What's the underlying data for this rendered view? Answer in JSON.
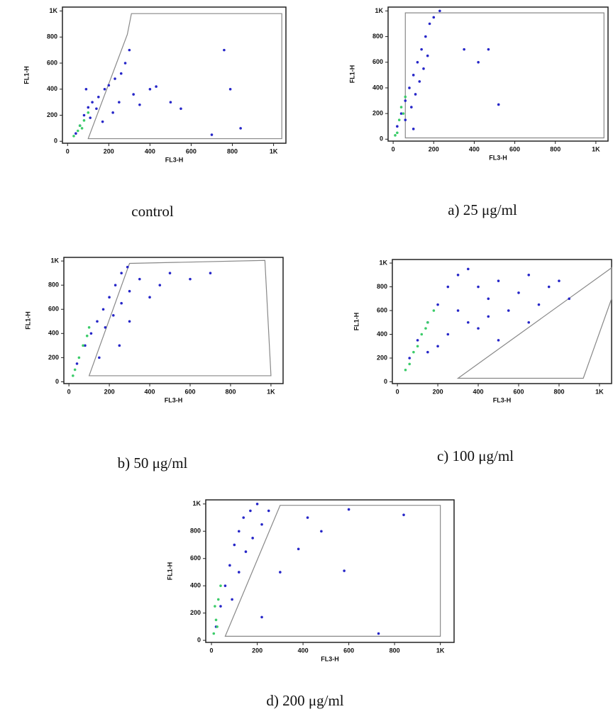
{
  "chart_data": [
    {
      "type": "scatter",
      "caption": "control",
      "xlabel": "FL3-H",
      "ylabel": "FL1-H",
      "xlim": [
        -25,
        1060
      ],
      "ylim": [
        -15,
        1030
      ],
      "xticks": [
        0,
        200,
        400,
        600,
        800,
        {
          "value": 1000,
          "label": "1K"
        }
      ],
      "yticks": [
        0,
        200,
        400,
        600,
        800,
        {
          "value": 1000,
          "label": "1K"
        }
      ],
      "gate": {
        "x": [
          100,
          1040,
          1040,
          310,
          290
        ],
        "y": [
          20,
          20,
          980,
          980,
          820
        ]
      },
      "series": [
        {
          "color": "#2626c8",
          "x": [
            40,
            60,
            80,
            100,
            120,
            150,
            180,
            200,
            230,
            260,
            280,
            300,
            220,
            250,
            320,
            350,
            400,
            430,
            500,
            550,
            700,
            760,
            790,
            840,
            140,
            110,
            90,
            170
          ],
          "values": [
            60,
            120,
            200,
            260,
            300,
            340,
            400,
            430,
            480,
            520,
            600,
            700,
            220,
            300,
            360,
            280,
            400,
            420,
            300,
            250,
            50,
            700,
            400,
            100,
            250,
            180,
            400,
            150
          ]
        },
        {
          "color": "#3ccc6a",
          "x": [
            30,
            50,
            60,
            80,
            100,
            70
          ],
          "values": [
            40,
            80,
            120,
            160,
            220,
            100
          ]
        }
      ]
    },
    {
      "type": "scatter",
      "caption": "a) 25 μg/ml",
      "xlabel": "FL3-H",
      "ylabel": "FL1-H",
      "xlim": [
        -25,
        1060
      ],
      "ylim": [
        -15,
        1030
      ],
      "xticks": [
        0,
        200,
        400,
        600,
        800,
        {
          "value": 1000,
          "label": "1K"
        }
      ],
      "yticks": [
        0,
        200,
        400,
        600,
        800,
        {
          "value": 1000,
          "label": "1K"
        }
      ],
      "gate": {
        "x": [
          60,
          1040,
          1040,
          60
        ],
        "y": [
          10,
          10,
          985,
          985
        ]
      },
      "series": [
        {
          "color": "#2626c8",
          "x": [
            20,
            40,
            60,
            80,
            100,
            120,
            140,
            160,
            180,
            200,
            60,
            90,
            110,
            130,
            150,
            170,
            350,
            420,
            520,
            470,
            100,
            230
          ],
          "values": [
            100,
            200,
            300,
            400,
            500,
            600,
            700,
            800,
            900,
            950,
            150,
            250,
            350,
            450,
            550,
            650,
            700,
            600,
            270,
            700,
            80,
            1000
          ]
        },
        {
          "color": "#3ccc6a",
          "x": [
            20,
            30,
            40,
            60,
            50,
            10
          ],
          "values": [
            50,
            150,
            250,
            330,
            200,
            30
          ]
        }
      ]
    },
    {
      "type": "scatter",
      "caption": "b) 50 μg/ml",
      "xlabel": "FL3-H",
      "ylabel": "FL1-H",
      "xlim": [
        -25,
        1060
      ],
      "ylim": [
        -15,
        1030
      ],
      "xticks": [
        0,
        200,
        400,
        600,
        800,
        {
          "value": 1000,
          "label": "1K"
        }
      ],
      "yticks": [
        0,
        200,
        400,
        600,
        800,
        {
          "value": 1000,
          "label": "1K"
        }
      ],
      "gate": {
        "x": [
          100,
          1000,
          970,
          300
        ],
        "y": [
          50,
          50,
          1005,
          980
        ]
      },
      "series": [
        {
          "color": "#2626c8",
          "x": [
            40,
            80,
            110,
            140,
            170,
            200,
            230,
            260,
            290,
            180,
            220,
            260,
            300,
            350,
            400,
            450,
            500,
            600,
            700,
            300,
            250,
            150
          ],
          "values": [
            150,
            300,
            400,
            500,
            600,
            700,
            800,
            900,
            950,
            450,
            550,
            650,
            750,
            850,
            700,
            800,
            900,
            850,
            900,
            500,
            300,
            200
          ]
        },
        {
          "color": "#3ccc6a",
          "x": [
            20,
            50,
            70,
            90,
            100,
            30
          ],
          "values": [
            50,
            200,
            300,
            380,
            450,
            100
          ]
        }
      ]
    },
    {
      "type": "scatter",
      "caption": "c) 100 μg/ml",
      "xlabel": "FL3-H",
      "ylabel": "FL1-H",
      "xlim": [
        -25,
        1060
      ],
      "ylim": [
        -15,
        1030
      ],
      "xticks": [
        0,
        200,
        400,
        600,
        800,
        {
          "value": 1000,
          "label": "1K"
        }
      ],
      "yticks": [
        0,
        200,
        400,
        600,
        800,
        {
          "value": 1000,
          "label": "1K"
        }
      ],
      "gate": {
        "x": [
          300,
          920,
          1060,
          1060
        ],
        "y": [
          30,
          30,
          700,
          960
        ]
      },
      "series": [
        {
          "color": "#2626c8",
          "x": [
            60,
            100,
            150,
            200,
            250,
            300,
            350,
            400,
            450,
            500,
            550,
            600,
            650,
            700,
            750,
            800,
            850,
            300,
            250,
            200,
            350,
            400,
            150,
            450,
            500,
            650
          ],
          "values": [
            200,
            350,
            500,
            650,
            800,
            900,
            950,
            800,
            700,
            850,
            600,
            750,
            900,
            650,
            800,
            850,
            700,
            600,
            400,
            300,
            500,
            450,
            250,
            550,
            350,
            500
          ]
        },
        {
          "color": "#3ccc6a",
          "x": [
            40,
            80,
            120,
            150,
            180,
            100,
            60,
            140
          ],
          "values": [
            100,
            250,
            400,
            500,
            600,
            300,
            150,
            450
          ]
        }
      ]
    },
    {
      "type": "scatter",
      "caption": "d) 200 μg/ml",
      "xlabel": "FL3-H",
      "ylabel": "FL1-H",
      "xlim": [
        -25,
        1060
      ],
      "ylim": [
        -15,
        1030
      ],
      "xticks": [
        0,
        200,
        400,
        600,
        800,
        {
          "value": 1000,
          "label": "1K"
        }
      ],
      "yticks": [
        0,
        200,
        400,
        600,
        800,
        {
          "value": 1000,
          "label": "1K"
        }
      ],
      "gate": {
        "x": [
          60,
          1000,
          1000,
          300
        ],
        "y": [
          30,
          30,
          990,
          990
        ]
      },
      "series": [
        {
          "color": "#2626c8",
          "x": [
            20,
            40,
            60,
            80,
            100,
            120,
            140,
            170,
            200,
            90,
            120,
            150,
            180,
            220,
            250,
            300,
            420,
            480,
            580,
            380,
            220,
            600,
            840,
            730
          ],
          "values": [
            100,
            250,
            400,
            550,
            700,
            800,
            900,
            950,
            1000,
            300,
            500,
            650,
            750,
            850,
            950,
            500,
            900,
            800,
            510,
            670,
            170,
            960,
            920,
            50
          ]
        },
        {
          "color": "#3ccc6a",
          "x": [
            10,
            20,
            30,
            40,
            15,
            25
          ],
          "values": [
            50,
            150,
            300,
            400,
            250,
            100
          ]
        }
      ]
    }
  ]
}
